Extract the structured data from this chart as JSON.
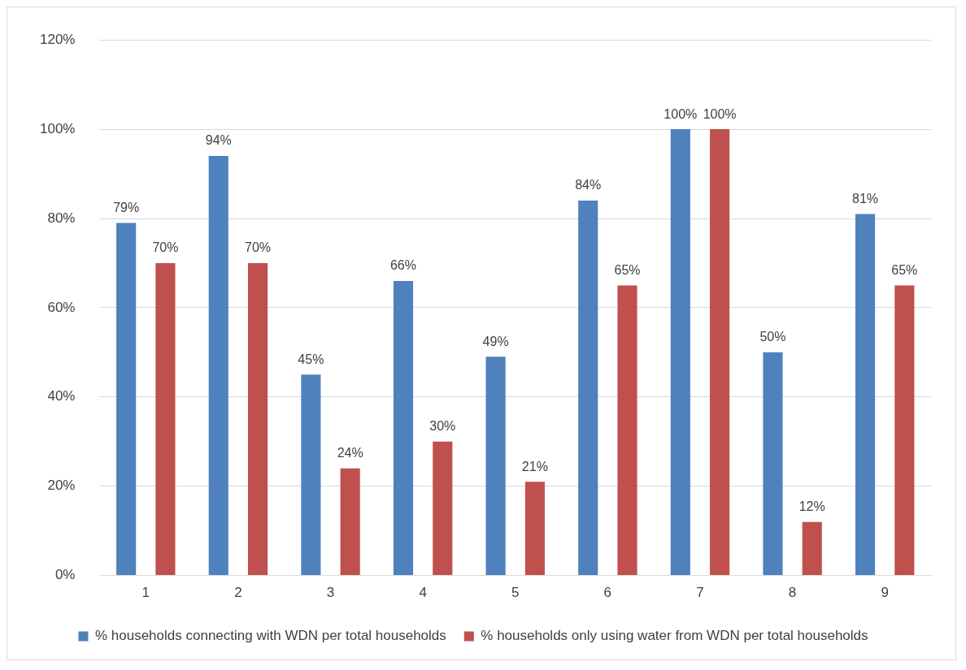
{
  "chart_data": {
    "type": "bar",
    "categories": [
      "1",
      "2",
      "3",
      "4",
      "5",
      "6",
      "7",
      "8",
      "9"
    ],
    "series": [
      {
        "name": "% households connecting with WDN per total households",
        "color": "#4f81bd",
        "values": [
          79,
          94,
          45,
          66,
          49,
          84,
          100,
          50,
          81
        ],
        "value_labels": [
          "79%",
          "94%",
          "45%",
          "66%",
          "49%",
          "84%",
          "100%",
          "50%",
          "81%"
        ]
      },
      {
        "name": "% households only using water from WDN per total households",
        "color": "#c0504d",
        "values": [
          70,
          70,
          24,
          30,
          21,
          65,
          100,
          12,
          65
        ],
        "value_labels": [
          "70%",
          "70%",
          "24%",
          "30%",
          "21%",
          "65%",
          "100%",
          "12%",
          "65%"
        ]
      }
    ],
    "ylim": [
      0,
      120
    ],
    "yticks": [
      {
        "value": 0,
        "label": "0%"
      },
      {
        "value": 20,
        "label": "20%"
      },
      {
        "value": 40,
        "label": "40%"
      },
      {
        "value": 60,
        "label": "60%"
      },
      {
        "value": 80,
        "label": "80%"
      },
      {
        "value": 100,
        "label": "100%"
      },
      {
        "value": 120,
        "label": "120%"
      }
    ],
    "grid": "y",
    "legend": "bottom"
  }
}
